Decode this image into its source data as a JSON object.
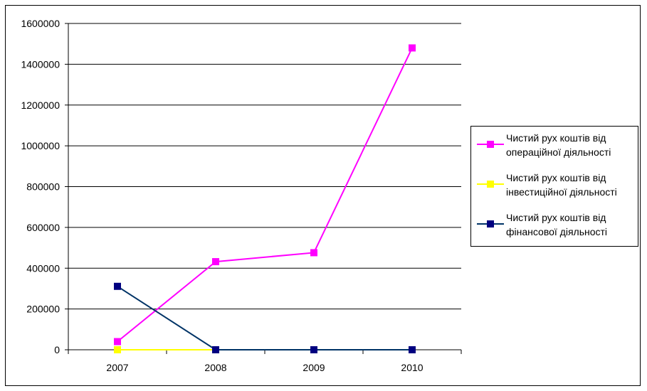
{
  "chart_data": {
    "type": "line",
    "categories": [
      "2007",
      "2008",
      "2009",
      "2010"
    ],
    "ylim": [
      0,
      1600000
    ],
    "y_ticks": [
      "0",
      "200000",
      "400000",
      "600000",
      "800000",
      "1000000",
      "1200000",
      "1400000",
      "1600000"
    ],
    "grid": true,
    "legend_position": "right",
    "series": [
      {
        "name": "Чистий рух коштів від операційної діяльності",
        "color": "#ff00ff",
        "values": [
          40000,
          432000,
          476000,
          1480000
        ]
      },
      {
        "name": "Чистий рух коштів від інвестиційної діяльності",
        "color": "#ffff00",
        "values": [
          0,
          0,
          0,
          0
        ]
      },
      {
        "name": "Чистий рух коштів від фінансової діяльності",
        "color": "#000080",
        "line_color": "#003366",
        "values": [
          311000,
          0,
          0,
          0
        ]
      }
    ]
  }
}
